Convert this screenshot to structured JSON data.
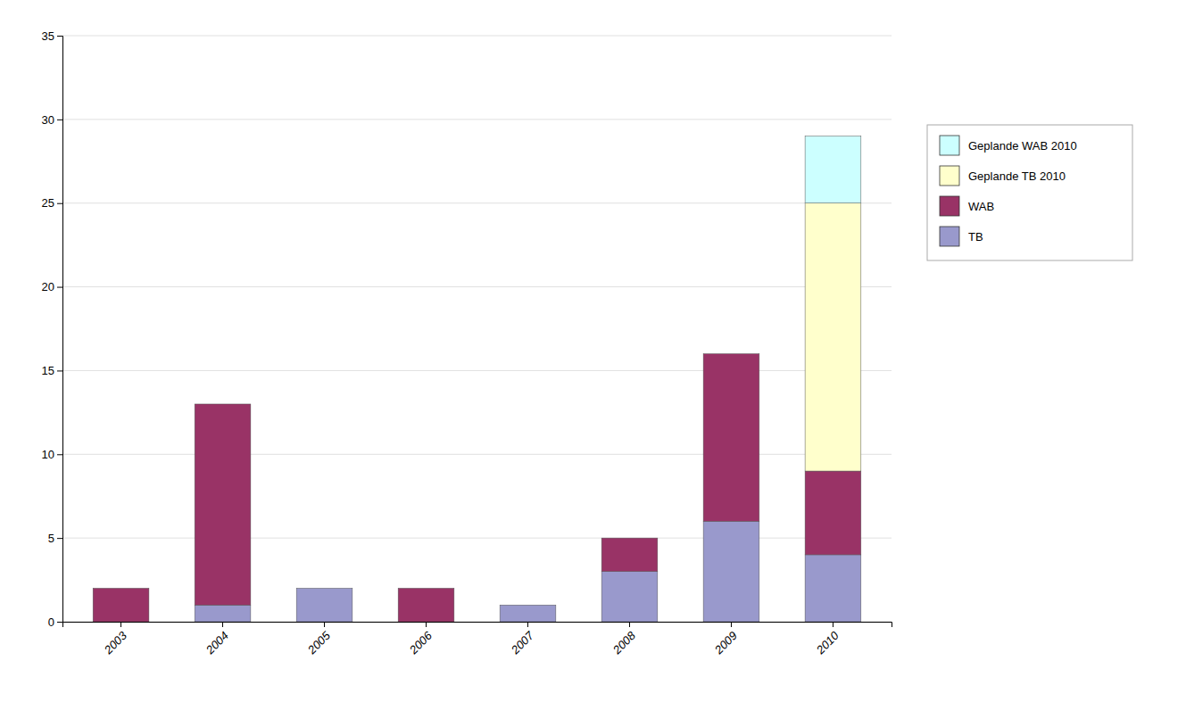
{
  "chart_data": {
    "type": "bar",
    "stacked": true,
    "categories": [
      "2003",
      "2004",
      "2005",
      "2006",
      "2007",
      "2008",
      "2009",
      "2010"
    ],
    "series": [
      {
        "name": "TB",
        "color": "#9999cc",
        "values": [
          0,
          1,
          2,
          0,
          1,
          3,
          6,
          4
        ]
      },
      {
        "name": "WAB",
        "color": "#993366",
        "values": [
          2,
          12,
          0,
          2,
          0,
          2,
          10,
          5
        ]
      },
      {
        "name": "Geplande TB 2010",
        "color": "#ffffcc",
        "values": [
          0,
          0,
          0,
          0,
          0,
          0,
          0,
          16
        ]
      },
      {
        "name": "Geplande WAB 2010",
        "color": "#ccffff",
        "values": [
          0,
          0,
          0,
          0,
          0,
          0,
          0,
          4
        ]
      }
    ],
    "ylim": [
      0,
      35
    ],
    "yticks": [
      0,
      5,
      10,
      15,
      20,
      25,
      30,
      35
    ],
    "grid": true,
    "legend": "right"
  }
}
